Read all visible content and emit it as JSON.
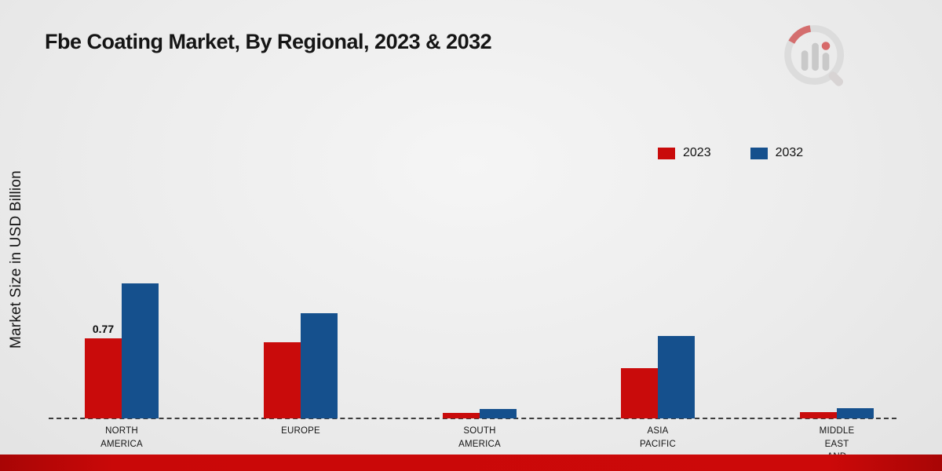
{
  "chart": {
    "title": "Fbe Coating Market, By Regional, 2023 & 2032",
    "ylabel": "Market Size in USD Billion"
  },
  "chart_data": {
    "type": "bar",
    "title": "Fbe Coating Market, By Regional, 2023 & 2032",
    "xlabel": "",
    "ylabel": "Market Size in USD Billion",
    "categories": [
      "NORTH AMERICA",
      "EUROPE",
      "SOUTH AMERICA",
      "ASIA PACIFIC",
      "MIDDLE EAST AND"
    ],
    "category_label_lines": [
      [
        "NORTH",
        "AMERICA"
      ],
      [
        "EUROPE"
      ],
      [
        "SOUTH",
        "AMERICA"
      ],
      [
        "ASIA",
        "PACIFIC"
      ],
      [
        "MIDDLE",
        "EAST",
        "AND"
      ]
    ],
    "series": [
      {
        "name": "2023",
        "color": "#c90b0b",
        "values": [
          0.77,
          0.73,
          0.05,
          0.48,
          0.06
        ]
      },
      {
        "name": "2032",
        "color": "#15508d",
        "values": [
          1.29,
          1.01,
          0.09,
          0.79,
          0.1
        ]
      }
    ],
    "annotations": [
      {
        "series": "2023",
        "category": "NORTH AMERICA",
        "text": "0.77"
      }
    ],
    "ylim": [
      0,
      3
    ],
    "grid": false,
    "legend_position": "upper right",
    "baseline_style": "dashed",
    "accent_colors": {
      "series_2023": "#c90b0b",
      "series_2032": "#15508d",
      "footer_strip": "#c90808"
    }
  },
  "branding": {
    "logo_name": "market-research-chart-logo"
  }
}
